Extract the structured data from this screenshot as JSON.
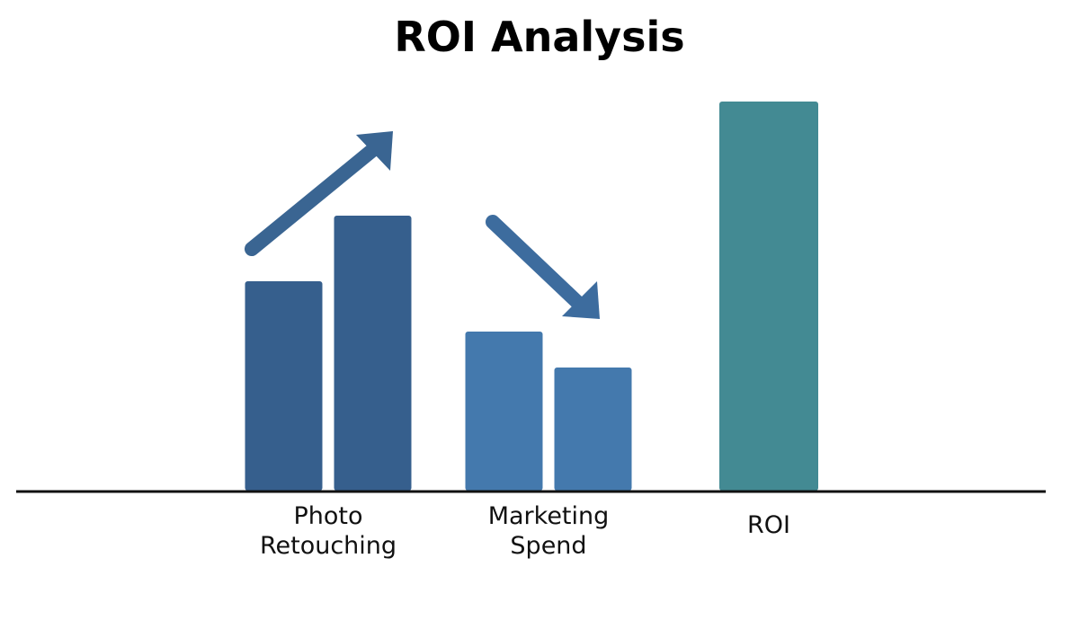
{
  "chart_data": {
    "type": "bar",
    "title": "ROI Analysis",
    "categories": [
      "Photo Retouching",
      "Marketing Spend",
      "ROI"
    ],
    "colors": [
      "#365f8d",
      "#4479ad",
      "#438a93"
    ],
    "series": [
      {
        "values": [
          233,
          177,
          433
        ]
      },
      {
        "values": [
          306,
          137,
          null
        ]
      }
    ],
    "ylim": [
      0,
      450
    ]
  }
}
